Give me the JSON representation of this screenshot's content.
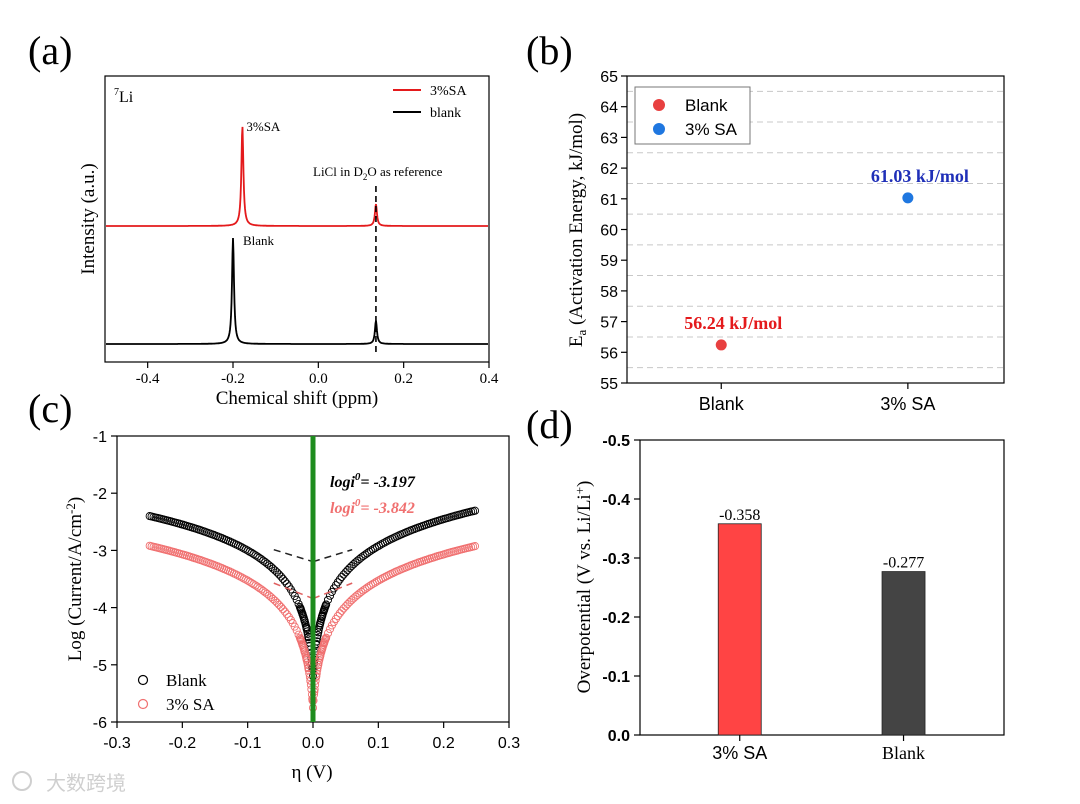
{
  "colors": {
    "red": "#e41a1c",
    "black": "#000000",
    "blue": "#1f77e0",
    "green": "#1e8c1e",
    "salmon": "#f07070",
    "bar_red": "#ff4444",
    "bar_gray": "#444444",
    "darkblue": "#1f2fb8"
  },
  "watermark": "大数跨境",
  "chart_data": [
    {
      "panel_label": "(a)",
      "type": "line",
      "nucleus_prefix": "7",
      "nucleus": "Li",
      "xlabel": "Chemical shift  (ppm)",
      "ylabel": "Intensity (a.u.)",
      "xlim": [
        -0.5,
        0.4
      ],
      "xticks": [
        "-0.4",
        "-0.2",
        "0.0",
        "0.2",
        "0.4"
      ],
      "legend": [
        "3%SA",
        "blank"
      ],
      "peak_labels": [
        "3%SA",
        "Blank"
      ],
      "reference_note_prefix": "LiCl in D",
      "reference_note_sub": "2",
      "reference_note_suffix": "O as reference",
      "reference_x": 0.135,
      "series": [
        {
          "name": "3%SA",
          "peaks": [
            {
              "x": -0.178,
              "height": 1.0
            },
            {
              "x": 0.135,
              "height": 0.22
            }
          ]
        },
        {
          "name": "blank",
          "peaks": [
            {
              "x": -0.2,
              "height": 1.0
            },
            {
              "x": 0.135,
              "height": 0.22
            }
          ]
        }
      ]
    },
    {
      "panel_label": "(b)",
      "type": "scatter",
      "categories": [
        "Blank",
        "3% SA"
      ],
      "values": [
        56.24,
        61.03
      ],
      "ylim": [
        55,
        65
      ],
      "yticks": [
        "55",
        "56",
        "57",
        "58",
        "59",
        "60",
        "61",
        "62",
        "63",
        "64",
        "65"
      ],
      "ylabel_prefix": "E",
      "ylabel_sub": "a",
      "ylabel_suffix": " (Activation Energy, kJ/mol)",
      "legend": [
        "Blank",
        "3% SA"
      ],
      "data_labels": [
        "56.24 kJ/mol",
        "61.03 kJ/mol"
      ]
    },
    {
      "panel_label": "(c)",
      "type": "scatter",
      "xlabel": "η (V)",
      "ylabel_prefix": "Log (Current/A/cm",
      "ylabel_sup": "-2",
      "ylabel_suffix": ")",
      "xlim": [
        -0.3,
        0.3
      ],
      "ylim": [
        -6,
        -1
      ],
      "xticks": [
        "-0.3",
        "-0.2",
        "-0.1",
        "0.0",
        "0.1",
        "0.2",
        "0.3"
      ],
      "yticks": [
        "-1",
        "-2",
        "-3",
        "-4",
        "-5",
        "-6"
      ],
      "legend": [
        "Blank",
        "3% SA"
      ],
      "annotations": [
        {
          "prefix": "logi",
          "sup": "0",
          "suffix": "= -3.197"
        },
        {
          "prefix": "logi",
          "sup": "0",
          "suffix": "= -3.842"
        }
      ],
      "series": [
        {
          "name": "Blank",
          "x_range": [
            -0.25,
            0.25
          ],
          "end_values": [
            -2.4,
            -2.3
          ],
          "logi0": -3.197,
          "min": -5.2
        },
        {
          "name": "3% SA",
          "x_range": [
            -0.25,
            0.25
          ],
          "end_values": [
            -2.92,
            -2.92
          ],
          "logi0": -3.842,
          "min": -5.75
        }
      ]
    },
    {
      "panel_label": "(d)",
      "type": "bar",
      "categories": [
        "3% SA",
        "Blank"
      ],
      "values": [
        -0.358,
        -0.277
      ],
      "data_labels": [
        "-0.358",
        "-0.277"
      ],
      "ylim": [
        0.0,
        -0.5
      ],
      "yticks": [
        "0.0",
        "-0.1",
        "-0.2",
        "-0.3",
        "-0.4",
        "-0.5"
      ],
      "ylabel_prefix": "Overpotential  (V vs. Li/Li",
      "ylabel_sup": "+",
      "ylabel_suffix": ")"
    }
  ]
}
